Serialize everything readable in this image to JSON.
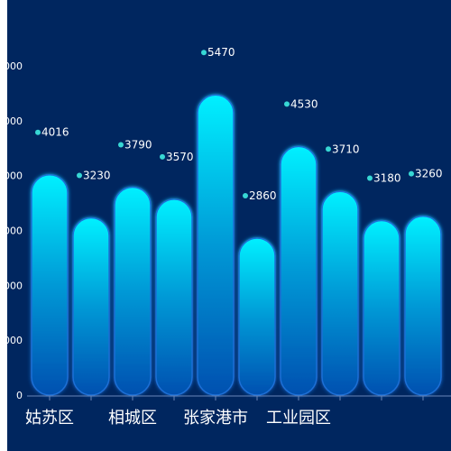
{
  "chart_data": {
    "type": "bar",
    "title": "",
    "xlabel": "",
    "ylabel": "",
    "categories": [
      "姑苏区",
      "",
      "相城区",
      "",
      "张家港市",
      "",
      "工业园区",
      "",
      "",
      ""
    ],
    "x_tick_labels_visible": [
      "姑苏区",
      "相城区",
      "张家港市",
      "工业园区"
    ],
    "series": [
      {
        "name": "",
        "values": [
          4016,
          3230,
          3790,
          3570,
          5470,
          2860,
          4530,
          3710,
          3180,
          3260
        ]
      }
    ],
    "y_ticks": [
      {
        "label": "0",
        "value": 0
      },
      {
        "label": "000",
        "value": 1000
      },
      {
        "label": "000",
        "value": 2000
      },
      {
        "label": "000",
        "value": 3000
      },
      {
        "label": "000",
        "value": 4000
      },
      {
        "label": "000",
        "value": 5000
      },
      {
        "label": "000",
        "value": 6000
      }
    ],
    "ylim": [
      0,
      6000
    ],
    "grid": false,
    "legend": "none",
    "colors": {
      "background": "#00265f",
      "bar_top": "#00f0ff",
      "bar_mid": "#0099d6",
      "bar_bottom": "#0050b0",
      "bar_glow": "#1f6fd6",
      "label_dot": "#37d7d4",
      "label_text": "#ffffff",
      "axis_line": "#6a86b8"
    }
  }
}
